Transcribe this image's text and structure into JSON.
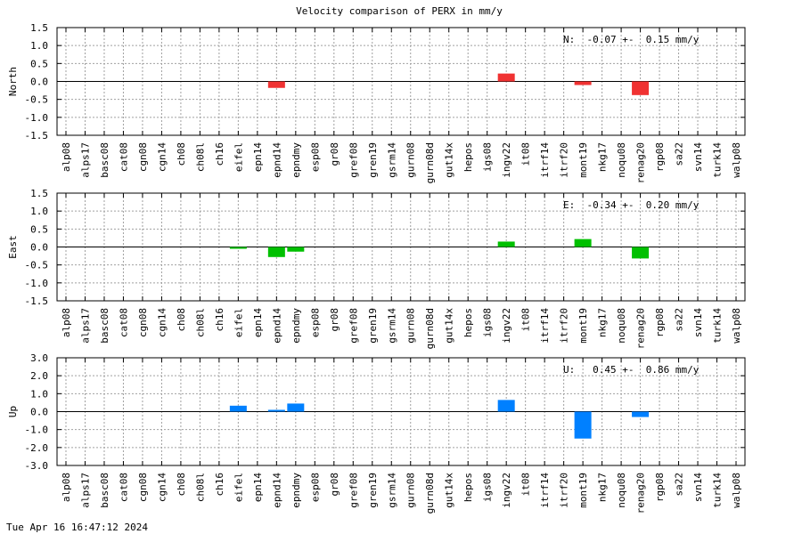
{
  "chart_data": {
    "type": "bar",
    "title": "Velocity comparison of PERX in mm/y",
    "categories": [
      "alp08",
      "alps17",
      "basc08",
      "cat08",
      "cgn08",
      "cgn14",
      "ch08",
      "ch08l",
      "ch16",
      "eifel",
      "epn14",
      "epnd14",
      "epndmy",
      "esp08",
      "gr08",
      "gref08",
      "gren19",
      "gsrm14",
      "gurn08",
      "gurn08d",
      "gut14x",
      "hepos",
      "igs08",
      "ingv22",
      "it08",
      "itrf14",
      "itrf20",
      "mont19",
      "nkg17",
      "noqu08",
      "renag20",
      "rgp08",
      "sa22",
      "svn14",
      "turk14",
      "walp08"
    ],
    "panels": [
      {
        "ylabel": "North",
        "color": "#f03232",
        "ylim": [
          -1.5,
          1.5
        ],
        "yticks": [
          "1.5",
          "1.0",
          "0.5",
          "0.0",
          "-0.5",
          "-1.0",
          "-1.5"
        ],
        "stat_label": "N:  -0.07 +-  0.15 mm/y",
        "values": [
          null,
          null,
          null,
          null,
          null,
          null,
          null,
          null,
          null,
          null,
          null,
          -0.18,
          null,
          null,
          null,
          null,
          null,
          null,
          null,
          null,
          null,
          null,
          null,
          0.22,
          null,
          null,
          null,
          -0.1,
          null,
          null,
          -0.38,
          null,
          null,
          null,
          null,
          null
        ]
      },
      {
        "ylabel": "East",
        "color": "#00c000",
        "ylim": [
          -1.5,
          1.5
        ],
        "yticks": [
          "1.5",
          "1.0",
          "0.5",
          "0.0",
          "-0.5",
          "-1.0",
          "-1.5"
        ],
        "stat_label": "E:  -0.34 +-  0.20 mm/y",
        "values": [
          null,
          null,
          null,
          null,
          null,
          null,
          null,
          null,
          null,
          -0.05,
          null,
          -0.28,
          -0.13,
          null,
          null,
          null,
          null,
          null,
          null,
          null,
          null,
          null,
          null,
          0.15,
          null,
          null,
          null,
          0.22,
          null,
          null,
          -0.32,
          null,
          null,
          null,
          null,
          null
        ]
      },
      {
        "ylabel": "Up",
        "color": "#0080ff",
        "ylim": [
          -3.0,
          3.0
        ],
        "yticks": [
          "3.0",
          "2.0",
          "1.0",
          "0.0",
          "-1.0",
          "-2.0",
          "-3.0"
        ],
        "stat_label": "U:   0.45 +-  0.86 mm/y",
        "values": [
          null,
          null,
          null,
          null,
          null,
          null,
          null,
          null,
          null,
          0.33,
          null,
          0.1,
          0.45,
          null,
          null,
          null,
          null,
          null,
          null,
          null,
          null,
          null,
          null,
          0.65,
          null,
          null,
          null,
          -1.5,
          null,
          null,
          -0.3,
          null,
          null,
          null,
          null,
          null
        ]
      }
    ],
    "grid": true
  },
  "footer": {
    "timestamp": "Tue Apr 16 16:47:12 2024"
  }
}
